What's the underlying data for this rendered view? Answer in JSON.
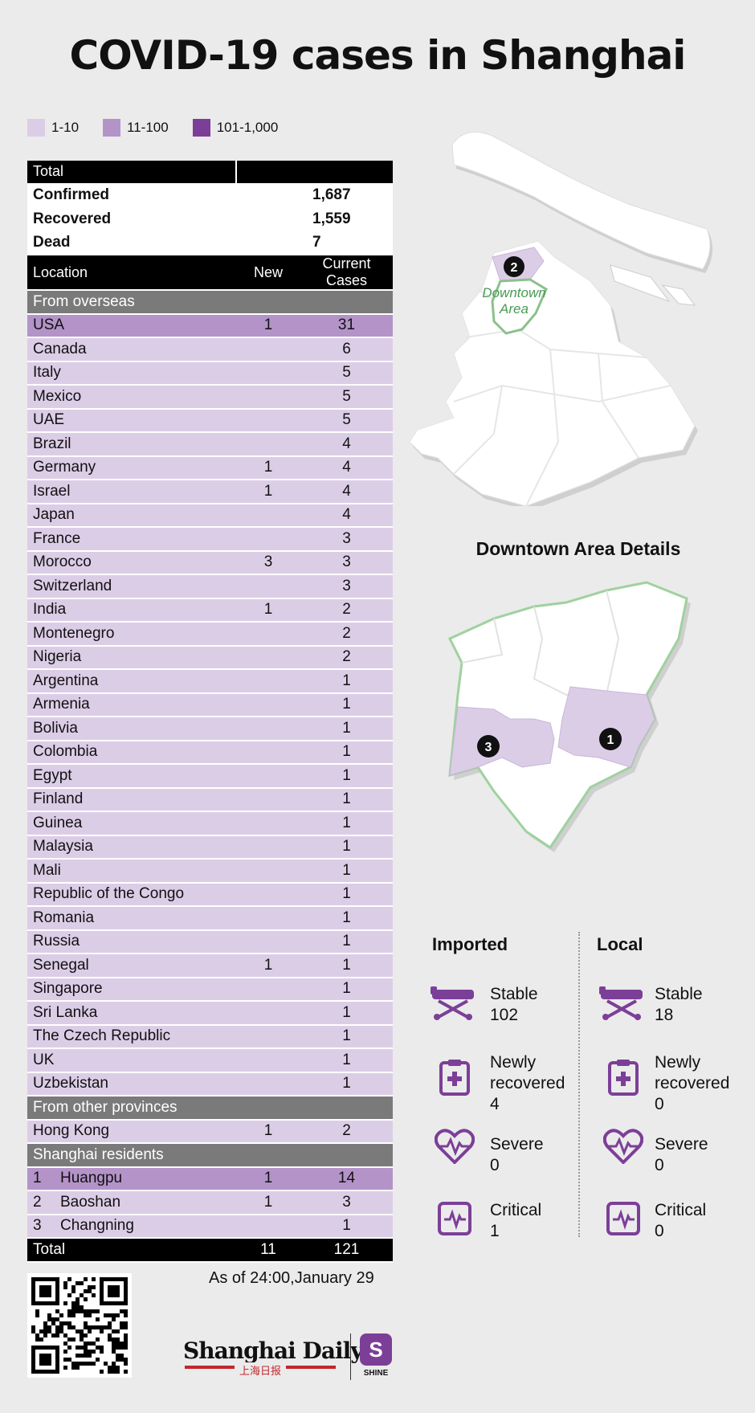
{
  "title": "COVID-19 cases in Shanghai",
  "legend": [
    {
      "label": "1-10",
      "color": "#dccde7"
    },
    {
      "label": "11-100",
      "color": "#b493c9"
    },
    {
      "label": "101-1,000",
      "color": "#7c3f98"
    }
  ],
  "table": {
    "total_header": "Total",
    "summary": [
      {
        "label": "Confirmed",
        "value": "1,687"
      },
      {
        "label": "Recovered",
        "value": "1,559"
      },
      {
        "label": "Dead",
        "value": "7"
      }
    ],
    "columns": {
      "location": "Location",
      "new": "New",
      "current": "Current Cases"
    },
    "sections": [
      {
        "title": "From overseas",
        "rows": [
          {
            "loc": "USA",
            "new": "1",
            "cur": "31"
          },
          {
            "loc": "Canada",
            "new": "",
            "cur": "6"
          },
          {
            "loc": "Italy",
            "new": "",
            "cur": "5"
          },
          {
            "loc": "Mexico",
            "new": "",
            "cur": "5"
          },
          {
            "loc": "UAE",
            "new": "",
            "cur": "5"
          },
          {
            "loc": "Brazil",
            "new": "",
            "cur": "4"
          },
          {
            "loc": "Germany",
            "new": "1",
            "cur": "4"
          },
          {
            "loc": "Israel",
            "new": "1",
            "cur": "4"
          },
          {
            "loc": "Japan",
            "new": "",
            "cur": "4"
          },
          {
            "loc": "France",
            "new": "",
            "cur": "3"
          },
          {
            "loc": "Morocco",
            "new": "3",
            "cur": "3"
          },
          {
            "loc": "Switzerland",
            "new": "",
            "cur": "3"
          },
          {
            "loc": "India",
            "new": "1",
            "cur": "2"
          },
          {
            "loc": "Montenegro",
            "new": "",
            "cur": "2"
          },
          {
            "loc": "Nigeria",
            "new": "",
            "cur": "2"
          },
          {
            "loc": "Argentina",
            "new": "",
            "cur": "1"
          },
          {
            "loc": "Armenia",
            "new": "",
            "cur": "1"
          },
          {
            "loc": "Bolivia",
            "new": "",
            "cur": "1"
          },
          {
            "loc": "Colombia",
            "new": "",
            "cur": "1"
          },
          {
            "loc": "Egypt",
            "new": "",
            "cur": "1"
          },
          {
            "loc": "Finland",
            "new": "",
            "cur": "1"
          },
          {
            "loc": "Guinea",
            "new": "",
            "cur": "1"
          },
          {
            "loc": "Malaysia",
            "new": "",
            "cur": "1"
          },
          {
            "loc": "Mali",
            "new": "",
            "cur": "1"
          },
          {
            "loc": "Republic of the Congo",
            "new": "",
            "cur": "1"
          },
          {
            "loc": "Romania",
            "new": "",
            "cur": "1"
          },
          {
            "loc": "Russia",
            "new": "",
            "cur": "1"
          },
          {
            "loc": "Senegal",
            "new": "1",
            "cur": "1"
          },
          {
            "loc": "Singapore",
            "new": "",
            "cur": "1"
          },
          {
            "loc": "Sri Lanka",
            "new": "",
            "cur": "1"
          },
          {
            "loc": "The Czech Republic",
            "new": "",
            "cur": "1"
          },
          {
            "loc": "UK",
            "new": "",
            "cur": "1"
          },
          {
            "loc": "Uzbekistan",
            "new": "",
            "cur": "1"
          }
        ]
      },
      {
        "title": "From other provinces",
        "rows": [
          {
            "loc": "Hong Kong",
            "new": "1",
            "cur": "2"
          }
        ]
      },
      {
        "title": "Shanghai residents",
        "rows": [
          {
            "num": "1",
            "loc": "Huangpu",
            "new": "1",
            "cur": "14"
          },
          {
            "num": "2",
            "loc": "Baoshan",
            "new": "1",
            "cur": "3"
          },
          {
            "num": "3",
            "loc": "Changning",
            "new": "",
            "cur": "1"
          }
        ]
      }
    ],
    "total_row": {
      "label": "Total",
      "new": "11",
      "cur": "121"
    }
  },
  "chart_data": {
    "type": "table",
    "title": "COVID-19 cases in Shanghai",
    "columns": [
      "Location",
      "New",
      "Current Cases"
    ],
    "highlight_color": "#b493c9",
    "base_color": "#dccde7"
  },
  "map": {
    "downtown_label_1": "Downtown",
    "downtown_label_2": "Area",
    "details_title": "Downtown Area Details",
    "markers": [
      "2",
      "1",
      "3"
    ],
    "land_color": "#ffffff",
    "highlight_color": "#dccde7",
    "downtown_outline_color": "#8cc08c"
  },
  "stats": {
    "imported": {
      "title": "Imported",
      "stable_label": "Stable",
      "stable": "102",
      "recovered_label_1": "Newly",
      "recovered_label_2": "recovered",
      "recovered": "4",
      "severe_label": "Severe",
      "severe": "0",
      "critical_label": "Critical",
      "critical": "1"
    },
    "local": {
      "title": "Local",
      "stable_label": "Stable",
      "stable": "18",
      "recovered_label_1": "Newly",
      "recovered_label_2": "recovered",
      "recovered": "0",
      "severe_label": "Severe",
      "severe": "0",
      "critical_label": "Critical",
      "critical": "0"
    },
    "icon_color": "#7c3f98",
    "icons": [
      "stretcher-icon",
      "medical-clipboard-icon",
      "heartbeat-icon",
      "monitor-icon"
    ]
  },
  "footer": {
    "as_of": "As of 24:00,January 29",
    "brand": "Shanghai Daily",
    "brand_cn": "上海日报",
    "shine_label": "SHINE",
    "shine_letter": "S"
  }
}
